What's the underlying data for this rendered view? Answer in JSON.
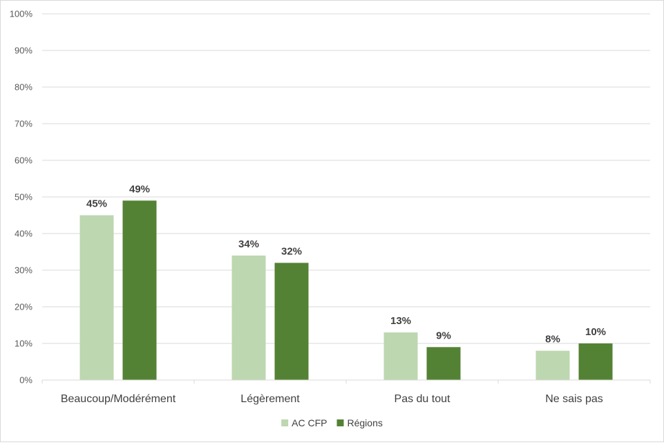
{
  "chart_data": {
    "type": "bar",
    "categories": [
      "Beaucoup/Modérément",
      "Légèrement",
      "Pas du tout",
      "Ne sais pas"
    ],
    "series": [
      {
        "name": "AC CFP",
        "values": [
          45,
          34,
          13,
          8
        ],
        "color": "#bdd7b0",
        "labels": [
          "45%",
          "34%",
          "13%",
          "8%"
        ]
      },
      {
        "name": "Régions",
        "values": [
          49,
          32,
          9,
          10
        ],
        "color": "#548235",
        "labels": [
          "49%",
          "32%",
          "9%",
          "10%"
        ]
      }
    ],
    "yticks": [
      "0%",
      "10%",
      "20%",
      "30%",
      "40%",
      "50%",
      "60%",
      "70%",
      "80%",
      "90%",
      "100%"
    ],
    "ylim": [
      0,
      100
    ],
    "grid": true,
    "legend_position": "bottom-center",
    "title": "",
    "xlabel": "",
    "ylabel": ""
  }
}
